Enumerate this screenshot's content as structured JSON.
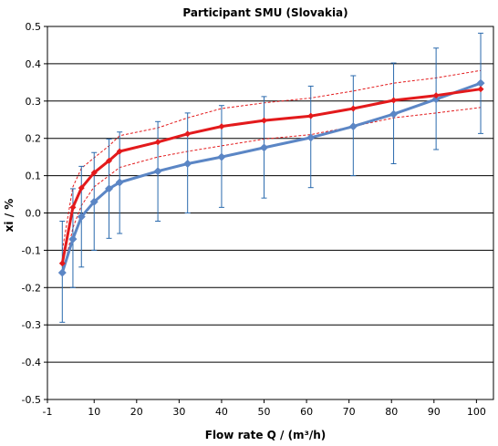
{
  "chart_data": {
    "type": "line",
    "title": "Participant SMU (Slovakia)",
    "xlabel": "Flow rate Q / (m³/h)",
    "ylabel": "xi / %",
    "xlim": [
      -1,
      104
    ],
    "ylim": [
      -0.5,
      0.5
    ],
    "x_ticks": [
      -1,
      10,
      20,
      30,
      40,
      50,
      60,
      70,
      80,
      90,
      100
    ],
    "y_ticks": [
      -0.5,
      -0.4,
      -0.3,
      -0.2,
      -0.1,
      0.0,
      0.1,
      0.2,
      0.3,
      0.4,
      0.5
    ],
    "y_tick_labels": [
      "-0.5",
      "-0.4",
      "-0.3",
      "-0.2",
      "-0.1",
      "0.0",
      "0.1",
      "0.2",
      "0.3",
      "0.4",
      "0.5"
    ],
    "gridlines": "horizontal",
    "colors": {
      "participant": "#5b86c5",
      "participant_errorbar": "#2a6aad",
      "reference": "#e31a1c",
      "reference_band": "#e31a1c",
      "grid": "#000000"
    },
    "series": [
      {
        "key": "participant",
        "style": "line-diamond-with-errorbars",
        "x": [
          2.5,
          5,
          7,
          10,
          13.5,
          16,
          25,
          32,
          40,
          50,
          61,
          71,
          80.5,
          90.5,
          101
        ],
        "values": [
          -0.16,
          -0.07,
          -0.01,
          0.03,
          0.065,
          0.082,
          0.112,
          0.132,
          0.15,
          0.175,
          0.202,
          0.232,
          0.265,
          0.305,
          0.348
        ],
        "error_low": [
          -0.293,
          -0.2,
          -0.145,
          -0.1,
          -0.068,
          -0.055,
          -0.022,
          0.0,
          0.015,
          0.04,
          0.068,
          0.1,
          0.132,
          0.17,
          0.213
        ],
        "error_high": [
          -0.022,
          0.065,
          0.125,
          0.162,
          0.198,
          0.217,
          0.245,
          0.268,
          0.288,
          0.312,
          0.34,
          0.368,
          0.402,
          0.442,
          0.482
        ]
      },
      {
        "key": "reference",
        "style": "line-diamond",
        "x": [
          2.5,
          5,
          7,
          10,
          13.5,
          16,
          25,
          32,
          40,
          50,
          61,
          71,
          80.5,
          90.5,
          101
        ],
        "values": [
          -0.135,
          0.015,
          0.067,
          0.108,
          0.14,
          0.165,
          0.19,
          0.212,
          0.232,
          0.248,
          0.26,
          0.28,
          0.302,
          0.315,
          0.332
        ],
        "band_low": [
          -0.17,
          -0.04,
          0.02,
          0.07,
          0.1,
          0.122,
          0.15,
          0.165,
          0.18,
          0.198,
          0.21,
          0.232,
          0.255,
          0.268,
          0.283
        ],
        "band_high": [
          -0.1,
          0.07,
          0.12,
          0.148,
          0.18,
          0.207,
          0.228,
          0.255,
          0.28,
          0.295,
          0.308,
          0.327,
          0.348,
          0.362,
          0.382
        ]
      }
    ]
  }
}
